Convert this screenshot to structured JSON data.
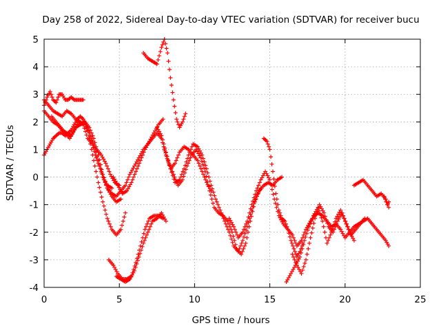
{
  "chart_data": {
    "type": "scatter",
    "title": "Day 258 of 2022, Sidereal Day-to-day VTEC variation (SDTVAR) for receiver bucu",
    "xlabel": "GPS time / hours",
    "ylabel": "SDTVAR / TECUs",
    "xlim": [
      0,
      25
    ],
    "ylim": [
      -4,
      5
    ],
    "xticks": [
      "0",
      "5",
      "10",
      "15",
      "20",
      "25"
    ],
    "yticks": [
      "-4",
      "-3",
      "-2",
      "-1",
      "0",
      "1",
      "2",
      "3",
      "4",
      "5"
    ],
    "grid": true,
    "marker": "+",
    "color": "#ff0000",
    "series": [
      {
        "x": [
          0.0,
          0.2,
          0.4,
          0.6,
          0.8,
          1.0,
          1.2,
          1.4,
          1.6,
          1.8,
          2.0,
          2.2,
          2.4,
          2.6,
          2.8,
          3.0,
          3.2,
          3.4,
          3.6,
          3.8,
          4.0,
          4.2,
          4.5
        ],
        "values": [
          0.8,
          1.0,
          1.2,
          1.4,
          1.5,
          1.6,
          1.6,
          1.5,
          1.6,
          1.7,
          1.9,
          2.1,
          2.2,
          2.1,
          1.9,
          1.6,
          1.2,
          0.8,
          0.5,
          0.2,
          -0.1,
          -0.3,
          -0.4
        ]
      },
      {
        "x": [
          0.0,
          0.2,
          0.4,
          0.6,
          0.8,
          1.0,
          1.2,
          1.4,
          1.6,
          1.8,
          2.0,
          2.2,
          2.4,
          2.6
        ],
        "values": [
          2.6,
          2.9,
          3.1,
          2.8,
          2.7,
          3.0,
          3.0,
          2.8,
          2.8,
          2.9,
          2.8,
          2.8,
          2.8,
          2.8
        ]
      },
      {
        "x": [
          0.0,
          0.3,
          0.6,
          0.9,
          1.2,
          1.5,
          1.8,
          2.1,
          2.4,
          2.7,
          3.0,
          3.3,
          3.6,
          3.9,
          4.2,
          4.5,
          4.8,
          5.1,
          5.4,
          5.7,
          6.0,
          6.3,
          6.6,
          6.9,
          7.2,
          7.5,
          7.8,
          8.1,
          8.4,
          8.7,
          9.0,
          9.3,
          9.6,
          9.9,
          10.2,
          10.5,
          10.8,
          11.1
        ],
        "values": [
          2.8,
          2.6,
          2.4,
          2.3,
          2.2,
          2.4,
          2.3,
          2.1,
          2.0,
          1.9,
          1.6,
          1.2,
          0.6,
          0.0,
          -0.4,
          -0.6,
          -0.7,
          -0.5,
          -0.3,
          0.1,
          0.4,
          0.7,
          1.0,
          1.2,
          1.4,
          1.6,
          1.4,
          0.8,
          0.3,
          0.5,
          0.9,
          1.1,
          1.0,
          0.8,
          0.6,
          0.2,
          -0.2,
          -0.5
        ]
      },
      {
        "x": [
          0.0,
          0.3,
          0.6,
          0.9,
          1.2,
          1.5,
          1.8,
          2.1,
          2.4,
          2.7,
          3.0,
          3.3,
          3.6,
          3.9,
          4.2,
          4.5,
          4.8,
          5.1
        ],
        "values": [
          2.4,
          2.2,
          2.0,
          1.9,
          1.7,
          1.6,
          1.5,
          1.8,
          1.9,
          2.0,
          1.8,
          1.4,
          0.8,
          0.1,
          -0.4,
          -0.7,
          -0.9,
          -0.8
        ]
      },
      {
        "x": [
          0.5,
          0.8,
          1.1,
          1.4,
          1.7,
          2.0,
          2.3,
          2.6,
          2.9,
          3.2,
          3.5,
          3.8,
          4.1,
          4.4,
          4.7,
          5.0
        ],
        "values": [
          2.2,
          2.0,
          1.8,
          1.6,
          1.4,
          1.7,
          2.0,
          1.9,
          1.4,
          1.2,
          1.0,
          0.8,
          0.5,
          0.1,
          -0.2,
          -0.3
        ]
      },
      {
        "x": [
          3.0,
          3.3,
          3.6,
          3.9,
          4.2,
          4.5,
          4.8,
          5.1,
          5.4
        ],
        "values": [
          1.4,
          0.6,
          -0.2,
          -0.9,
          -1.5,
          -1.9,
          -2.1,
          -1.9,
          -1.3
        ]
      },
      {
        "x": [
          4.3,
          4.6,
          4.9,
          5.2,
          5.5,
          5.8,
          6.1,
          6.4,
          6.7,
          7.0,
          7.3,
          7.6,
          7.9
        ],
        "values": [
          -3.0,
          -3.2,
          -3.5,
          -3.7,
          -3.7,
          -3.6,
          -3.1,
          -2.5,
          -1.9,
          -1.5,
          -1.4,
          -1.4,
          -1.5
        ]
      },
      {
        "x": [
          4.8,
          5.1,
          5.4,
          5.7,
          6.0,
          6.3,
          6.6,
          6.9,
          7.2,
          7.5,
          7.8,
          8.1
        ],
        "values": [
          -3.6,
          -3.7,
          -3.8,
          -3.7,
          -3.4,
          -2.9,
          -2.4,
          -2.0,
          -1.6,
          -1.5,
          -1.3,
          -1.6
        ]
      },
      {
        "x": [
          4.6,
          4.9,
          5.2,
          5.5,
          5.8,
          6.1,
          6.4,
          6.7,
          7.0,
          7.3,
          7.6,
          7.9
        ],
        "values": [
          0.0,
          -0.3,
          -0.6,
          -0.5,
          -0.2,
          0.2,
          0.6,
          1.0,
          1.3,
          1.6,
          1.9,
          2.1
        ]
      },
      {
        "x": [
          6.6,
          6.9,
          7.2,
          7.5,
          7.8,
          8.0,
          8.2,
          8.4,
          8.6,
          8.8,
          9.0,
          9.2,
          9.4
        ],
        "values": [
          4.5,
          4.3,
          4.2,
          4.1,
          4.7,
          5.0,
          4.5,
          3.6,
          2.8,
          2.1,
          1.8,
          2.0,
          2.3
        ]
      },
      {
        "x": [
          7.5,
          7.8,
          8.1,
          8.4,
          8.7,
          9.0,
          9.3,
          9.6,
          9.9,
          10.2,
          10.5,
          10.8,
          11.1,
          11.4,
          11.7,
          12.0,
          12.3,
          12.6,
          12.9,
          13.2,
          13.5,
          13.8,
          14.1,
          14.4
        ],
        "values": [
          1.8,
          1.5,
          0.9,
          0.3,
          -0.2,
          -0.1,
          0.3,
          0.8,
          1.2,
          1.1,
          0.8,
          0.3,
          -0.3,
          -0.8,
          -1.2,
          -1.6,
          -2.0,
          -2.5,
          -2.7,
          -2.3,
          -1.8,
          -1.2,
          -0.7,
          -0.4
        ]
      },
      {
        "x": [
          8.0,
          8.3,
          8.6,
          8.9,
          9.2,
          9.5,
          9.8,
          10.1,
          10.4,
          10.7,
          11.0,
          11.3,
          11.6,
          11.9,
          12.2,
          12.5,
          12.8,
          13.1,
          13.4,
          13.7,
          14.0,
          14.3,
          14.6,
          14.9,
          15.2,
          15.5,
          15.8
        ],
        "values": [
          1.0,
          0.5,
          0.1,
          -0.3,
          -0.1,
          0.4,
          0.8,
          1.0,
          0.7,
          0.2,
          -0.5,
          -1.1,
          -1.3,
          -1.4,
          -1.6,
          -2.0,
          -2.6,
          -2.8,
          -2.4,
          -1.6,
          -0.9,
          -0.5,
          -0.3,
          -0.2,
          -0.3,
          -0.1,
          0.0
        ]
      },
      {
        "x": [
          12.3,
          12.6,
          12.9,
          13.2,
          13.5,
          13.8,
          14.1,
          14.4,
          14.7,
          15.0,
          15.3,
          15.6,
          15.9,
          16.2,
          16.5,
          16.8,
          17.1,
          17.4,
          17.7,
          18.0
        ],
        "values": [
          -1.5,
          -1.8,
          -2.2,
          -2.0,
          -1.6,
          -1.0,
          -0.5,
          -0.1,
          0.2,
          -0.1,
          -0.8,
          -1.4,
          -1.7,
          -1.9,
          -2.1,
          -2.5,
          -2.3,
          -1.9,
          -1.6,
          -1.4
        ]
      },
      {
        "x": [
          14.6,
          14.8,
          15.0,
          15.2,
          15.4,
          15.6,
          15.8,
          16.0,
          16.2,
          16.4,
          16.6,
          16.8,
          17.0,
          17.2
        ],
        "values": [
          1.4,
          1.3,
          1.0,
          0.2,
          -0.6,
          -1.2,
          -1.5,
          -1.6,
          -1.9,
          -2.3,
          -2.6,
          -2.9,
          -2.7,
          -2.4
        ]
      },
      {
        "x": [
          16.1,
          16.4,
          16.7,
          17.0,
          17.3,
          17.6,
          17.9,
          18.2,
          18.5,
          18.8,
          19.1,
          19.4,
          19.7,
          20.0,
          20.3,
          20.6,
          20.9,
          21.2,
          21.5,
          21.8,
          22.1,
          22.4,
          22.7,
          22.9
        ],
        "values": [
          -3.8,
          -3.5,
          -3.2,
          -2.9,
          -2.3,
          -1.8,
          -1.4,
          -1.3,
          -1.4,
          -1.6,
          -1.8,
          -1.7,
          -1.9,
          -2.2,
          -2.0,
          -1.8,
          -1.7,
          -1.6,
          -1.5,
          -1.7,
          -1.9,
          -2.1,
          -2.3,
          -2.5
        ]
      },
      {
        "x": [
          16.5,
          16.8,
          17.1,
          17.4,
          17.7,
          18.0,
          18.3,
          18.6,
          18.9,
          19.2,
          19.5,
          19.8,
          20.1,
          20.4,
          20.7,
          21.0,
          21.3
        ],
        "values": [
          -2.8,
          -3.2,
          -3.5,
          -3.0,
          -2.2,
          -1.5,
          -1.0,
          -1.3,
          -1.8,
          -2.0,
          -1.6,
          -1.3,
          -1.7,
          -2.1,
          -1.9,
          -1.7,
          -1.5
        ]
      },
      {
        "x": [
          17.6,
          17.9,
          18.2,
          18.5,
          18.8,
          19.1,
          19.4,
          19.7,
          20.0,
          20.3,
          20.6
        ],
        "values": [
          -1.8,
          -1.4,
          -1.1,
          -1.6,
          -2.4,
          -2.0,
          -1.5,
          -1.2,
          -1.6,
          -2.0,
          -2.3
        ]
      },
      {
        "x": [
          20.6,
          20.9,
          21.2,
          21.5,
          21.8,
          22.1,
          22.4,
          22.7,
          22.9
        ],
        "values": [
          -0.3,
          -0.2,
          -0.1,
          -0.3,
          -0.5,
          -0.7,
          -0.6,
          -0.8,
          -1.1
        ]
      },
      {
        "x": [
          22.6,
          22.8,
          22.9
        ],
        "values": [
          -0.7,
          -1.0,
          -0.9
        ]
      }
    ]
  }
}
